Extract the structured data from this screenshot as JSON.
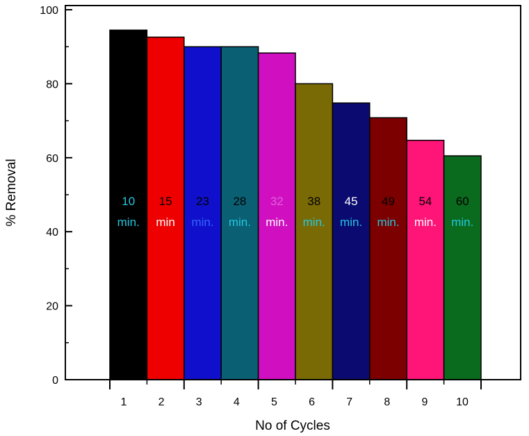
{
  "chart_data": {
    "type": "bar",
    "xlabel": "No of Cycles",
    "ylabel": "% Removal",
    "ylim": [
      0,
      100
    ],
    "yticks": [
      0,
      20,
      40,
      60,
      80,
      100
    ],
    "grid": false,
    "legend": "none",
    "categories": [
      "1",
      "2",
      "3",
      "4",
      "5",
      "6",
      "7",
      "8",
      "9",
      "10"
    ],
    "values": [
      94.5,
      92.6,
      90,
      90,
      88.3,
      80,
      74.8,
      70.8,
      64.7,
      60.5
    ],
    "bar_colors": [
      "#000000",
      "#ee0000",
      "#1010cc",
      "#0a5f73",
      "#d010c0",
      "#7a6a06",
      "#0a0a70",
      "#7c0000",
      "#ff1478",
      "#0a6a1e"
    ],
    "bar_labels": [
      {
        "time": "10",
        "unit": "min.",
        "time_color": "#22c8e0",
        "unit_color": "#22c8e0"
      },
      {
        "time": "15",
        "unit": "min",
        "time_color": "#000000",
        "unit_color": "#ffffff"
      },
      {
        "time": "23",
        "unit": "min.",
        "time_color": "#000000",
        "unit_color": "#3366ff"
      },
      {
        "time": "28",
        "unit": "min.",
        "time_color": "#000000",
        "unit_color": "#22c8e0"
      },
      {
        "time": "32",
        "unit": "min.",
        "time_color": "#e060e0",
        "unit_color": "#ffffff"
      },
      {
        "time": "38",
        "unit": "min.",
        "time_color": "#000000",
        "unit_color": "#22c8e0"
      },
      {
        "time": "45",
        "unit": "min.",
        "time_color": "#ffffff",
        "unit_color": "#22c8e0"
      },
      {
        "time": "49",
        "unit": "min.",
        "time_color": "#000000",
        "unit_color": "#22c8e0"
      },
      {
        "time": "54",
        "unit": "min.",
        "time_color": "#000000",
        "unit_color": "#ffffff"
      },
      {
        "time": "60",
        "unit": "min.",
        "time_color": "#000000",
        "unit_color": "#22c8e0"
      }
    ]
  }
}
